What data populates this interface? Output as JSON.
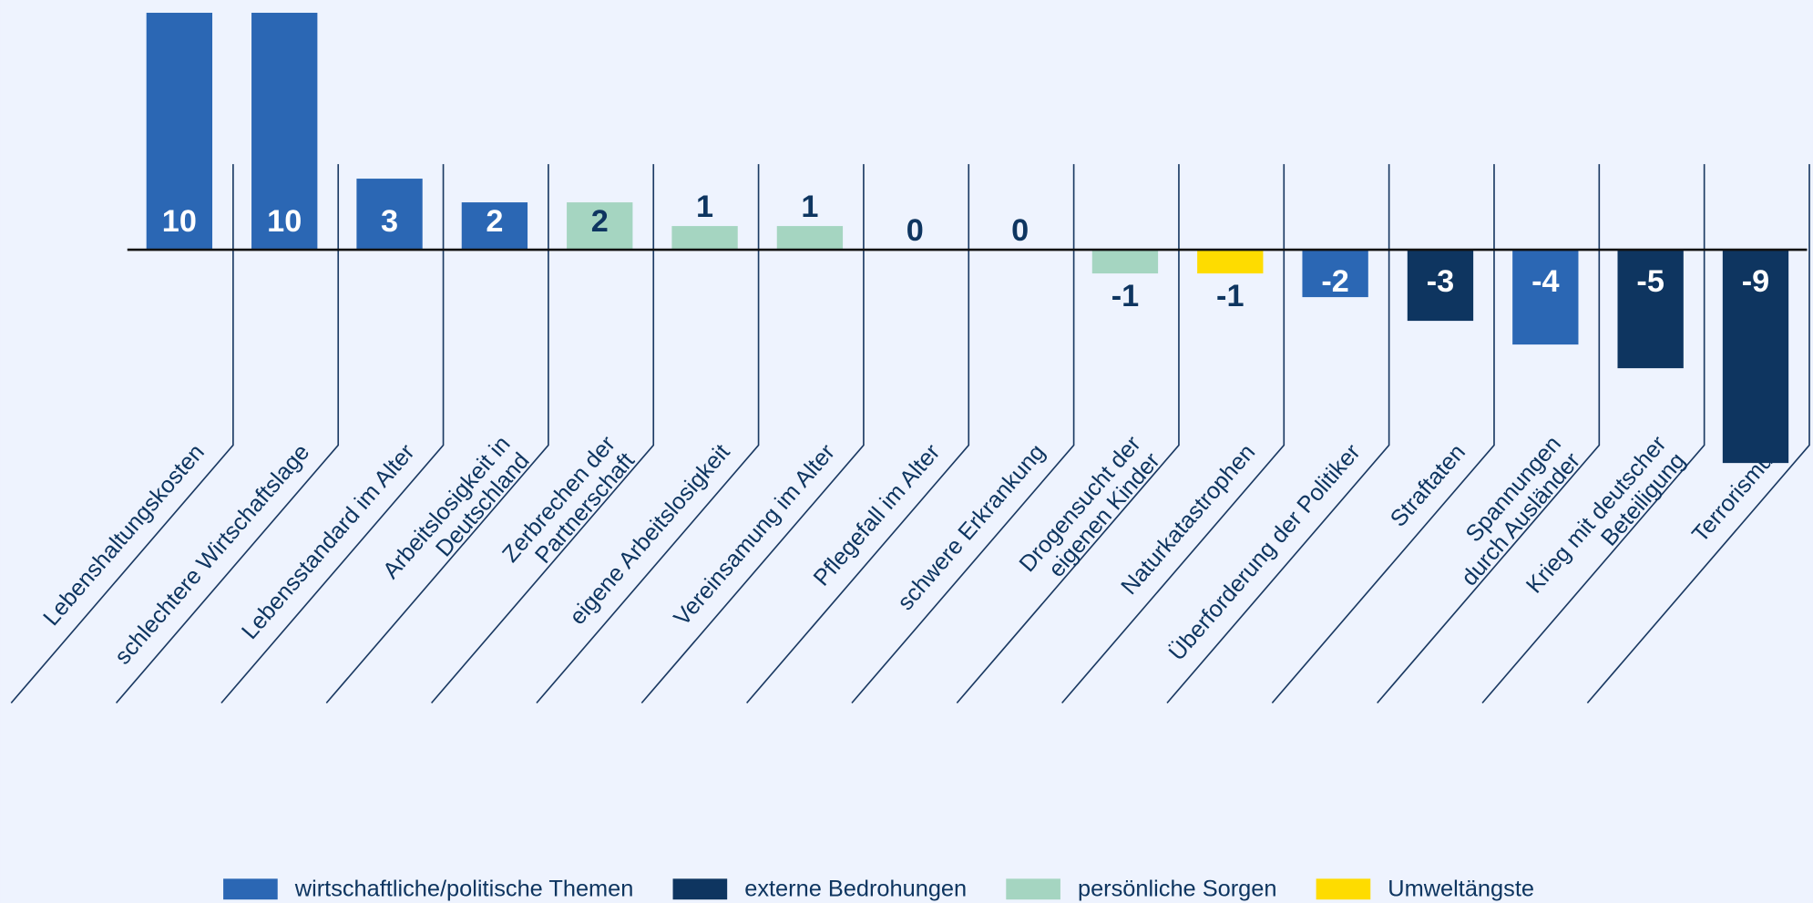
{
  "chart_data": {
    "type": "bar",
    "categories": [
      "Lebenshaltungskosten",
      "schlechtere Wirtschaftslage",
      "Lebensstandard im Alter",
      "Arbeitslosigkeit in\nDeutschland",
      "Zerbrechen der\nPartnerschaft",
      "eigene Arbeitslosigkeit",
      "Vereinsamung im Alter",
      "Pflegefall im Alter",
      "schwere Erkrankung",
      "Drogensucht der\neigenen Kinder",
      "Naturkatastrophen",
      "Überforderung der Politiker",
      "Straftaten",
      "Spannungen\ndurch Ausländer",
      "Krieg mit deutscher\nBeteiligung",
      "Terrorismus"
    ],
    "series": [
      {
        "name": "wirtschaftliche/politische Themen",
        "color": "#2b67b4",
        "values": [
          10,
          10,
          3,
          2,
          null,
          null,
          null,
          null,
          null,
          null,
          null,
          -2,
          null,
          -4,
          null,
          null
        ]
      },
      {
        "name": "externe Bedrohungen",
        "color": "#0e3560",
        "values": [
          null,
          null,
          null,
          null,
          null,
          null,
          null,
          null,
          null,
          null,
          null,
          null,
          -3,
          null,
          -5,
          -9
        ]
      },
      {
        "name": "persönliche Sorgen",
        "color": "#a5d5c1",
        "values": [
          null,
          null,
          null,
          null,
          2,
          1,
          1,
          0,
          0,
          -1,
          null,
          null,
          null,
          null,
          null,
          null
        ]
      },
      {
        "name": "Umweltängste",
        "color": "#fedc00",
        "values": [
          null,
          null,
          null,
          null,
          null,
          null,
          null,
          null,
          null,
          null,
          -1,
          null,
          null,
          null,
          null,
          null
        ]
      }
    ],
    "ylim": [
      -10,
      10.1
    ]
  }
}
